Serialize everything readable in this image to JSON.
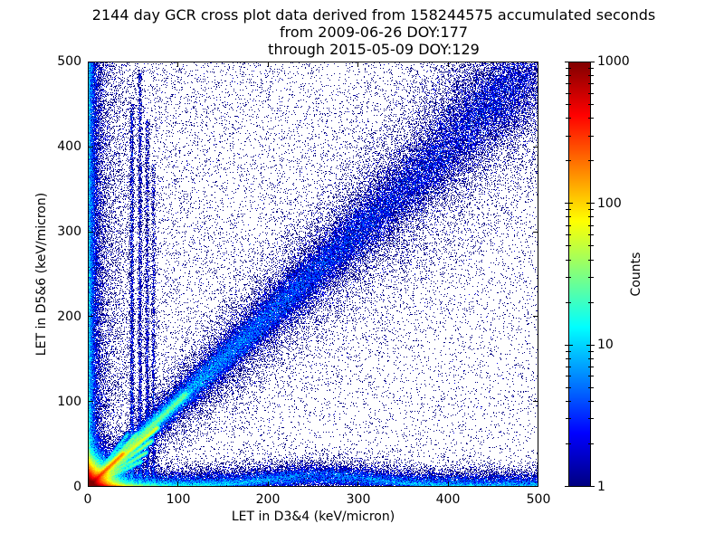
{
  "title": {
    "line1": "2144 day GCR cross plot data derived from 158244575 accumulated seconds",
    "line2": "from 2009-06-26 DOY:177",
    "line3": "through 2015-05-09 DOY:129"
  },
  "axes": {
    "x": {
      "label": "LET in D3&4 (keV/micron)",
      "ticks": [
        "0",
        "100",
        "200",
        "300",
        "400",
        "500"
      ]
    },
    "y": {
      "label": "LET in D5&6 (keV/micron)",
      "ticks": [
        "500",
        "400",
        "300",
        "200",
        "100",
        "0"
      ]
    }
  },
  "colorbar": {
    "label": "Counts",
    "ticks": [
      "1000",
      "100",
      "10",
      "1"
    ]
  },
  "chart_data": {
    "type": "heatmap",
    "title": "2144 day GCR cross plot data derived from 158244575 accumulated seconds from 2009-06-26 DOY:177 through 2015-05-09 DOY:129",
    "xlabel": "LET in D3&4 (keV/micron)",
    "ylabel": "LET in D5&6 (keV/micron)",
    "xlim": [
      0,
      500
    ],
    "ylim": [
      0,
      500
    ],
    "x_ticks": [
      0,
      100,
      200,
      300,
      400,
      500
    ],
    "y_ticks": [
      0,
      100,
      200,
      300,
      400,
      500
    ],
    "grid": false,
    "colormap": "jet",
    "count_scale": {
      "type": "log",
      "min": 1,
      "max": 1000,
      "label": "Counts"
    },
    "colorbar_ticks": [
      1000,
      100,
      10,
      1
    ],
    "features": [
      {
        "kind": "uniform",
        "n": 9000,
        "x_pow": 1.0,
        "y_pow": 1.0
      },
      {
        "kind": "uniform",
        "n": 9500,
        "x_pow": 2.2,
        "y_pow": 0.8
      },
      {
        "kind": "diagonal",
        "n": 70000,
        "x_pow": 1.8,
        "slope": 1.0,
        "sigma0": 2.5,
        "sigma_slope": 0.055
      },
      {
        "kind": "diagonal",
        "n": 24000,
        "x_pow": 1.1,
        "slope": 1.0,
        "sigma0": 8.0,
        "sigma_slope": 0.14
      },
      {
        "kind": "blob",
        "n": 180000,
        "mx": 8.0,
        "my": 8.0
      },
      {
        "kind": "blob",
        "n": 30000,
        "mx": 18.0,
        "my": 1.3
      },
      {
        "kind": "blob",
        "n": 12000,
        "mx": 1.3,
        "my": 9.0
      },
      {
        "kind": "streak",
        "n": 20000,
        "slope": 1.0,
        "len": 40,
        "sigma": 1.2,
        "pow": 1.0
      },
      {
        "kind": "streak",
        "n": 12000,
        "slope": 1.0,
        "len": 110,
        "sigma": 2.0,
        "pow": 0.9
      },
      {
        "kind": "streak",
        "n": 15000,
        "slope": 0.9,
        "len": 78,
        "sigma": 1.4,
        "pow": 0.8
      },
      {
        "kind": "streak",
        "n": 8000,
        "slope": 0.76,
        "len": 72,
        "sigma": 1.4,
        "pow": 0.8
      },
      {
        "kind": "streak",
        "n": 6000,
        "slope": 0.62,
        "len": 66,
        "sigma": 1.4,
        "pow": 0.8
      },
      {
        "kind": "streak",
        "n": 4000,
        "slope": 0.5,
        "len": 60,
        "sigma": 1.5,
        "pow": 0.8
      },
      {
        "kind": "streak",
        "n": 3500,
        "slope": 1.15,
        "len": 55,
        "sigma": 1.4,
        "pow": 0.8
      },
      {
        "kind": "streak",
        "n": 2500,
        "slope": 1.4,
        "len": 45,
        "sigma": 1.4,
        "pow": 0.8
      },
      {
        "kind": "hband",
        "n": 40000,
        "x_pow": 1.35,
        "mean_y": 6.0,
        "bump_x": 260,
        "bump_w": 55,
        "bump_h": 16
      },
      {
        "kind": "vband",
        "n": 22000,
        "y_pow": 1.25,
        "mean_x": 4.0
      },
      {
        "kind": "vband",
        "n": 8000,
        "y_pow": 1.1,
        "mean_x": 14.0
      },
      {
        "kind": "vline",
        "n": 2600,
        "x": 49,
        "sigma": 1.2,
        "ymax": 450,
        "y_pow": 1.3
      },
      {
        "kind": "vline",
        "n": 2300,
        "x": 58,
        "sigma": 1.2,
        "ymax": 490,
        "y_pow": 1.3
      },
      {
        "kind": "vline",
        "n": 1900,
        "x": 66,
        "sigma": 1.2,
        "ymax": 430,
        "y_pow": 1.3
      },
      {
        "kind": "vline",
        "n": 1400,
        "x": 73,
        "sigma": 1.2,
        "ymax": 380,
        "y_pow": 1.3
      },
      {
        "kind": "gauss2",
        "n": 2500,
        "cx": 450,
        "cy": 460,
        "sx": 40,
        "sy": 30
      }
    ]
  }
}
